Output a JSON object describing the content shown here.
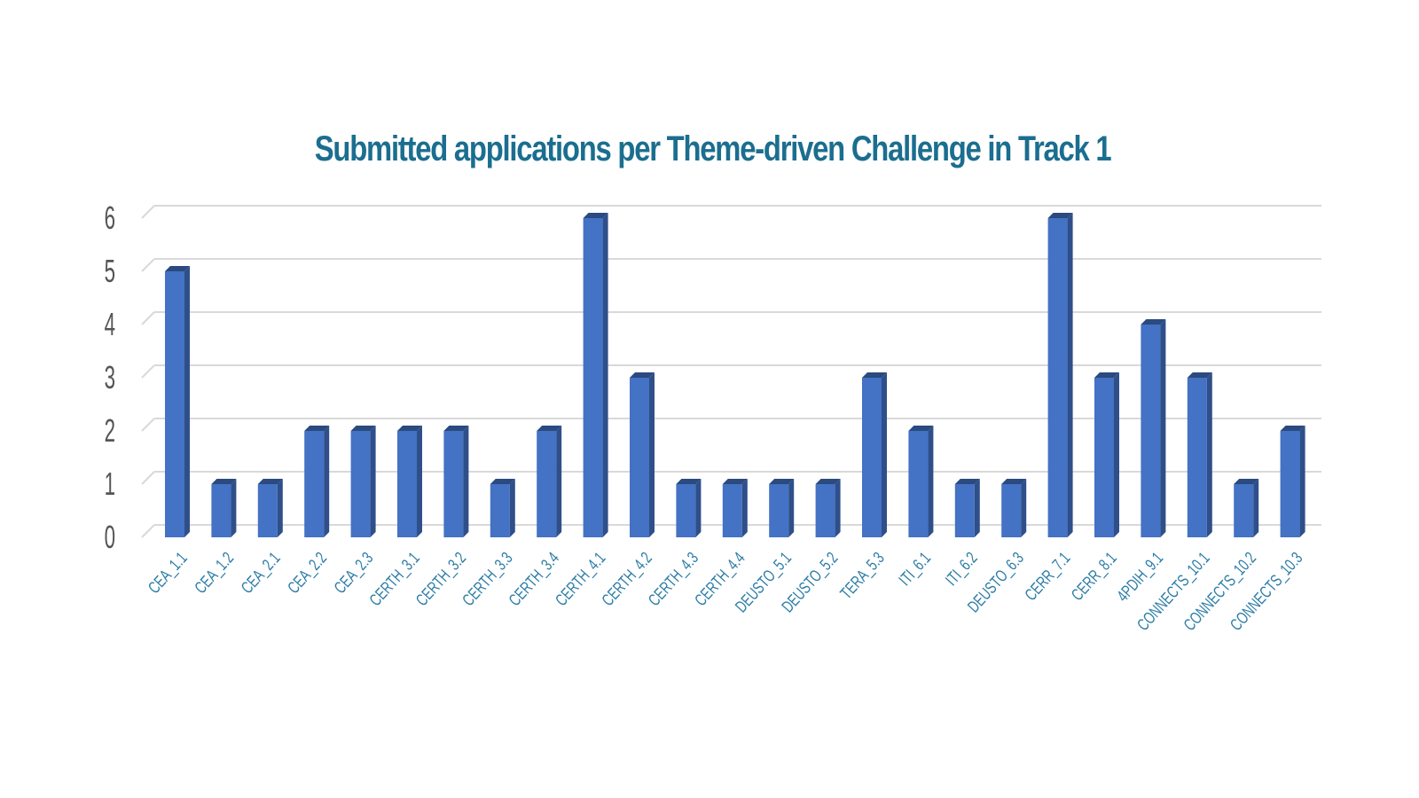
{
  "chart_data": {
    "type": "bar",
    "title": "Submitted applications per Theme-driven Challenge in Track 1",
    "xlabel": "",
    "ylabel": "",
    "ylim": [
      0,
      6
    ],
    "yticks": [
      "0",
      "1",
      "2",
      "3",
      "4",
      "5",
      "6"
    ],
    "grid": true,
    "legend": "none",
    "categories": [
      "CEA_1.1",
      "CEA_1.2",
      "CEA_2.1",
      "CEA_2.2",
      "CEA_2.3",
      "CERTH_3.1",
      "CERTH_3.2",
      "CERTH_3.3",
      "CERTH_3.4",
      "CERTH_4.1",
      "CERTH_4.2",
      "CERTH_4.3",
      "CERTH_4.4",
      "DEUSTO_5.1",
      "DEUSTO_5.2",
      "TERA_5.3",
      "ITI_6.1",
      "ITI_6.2",
      "DEUSTO_6.3",
      "CERR_7.1",
      "CERR_8.1",
      "4PDIH_9.1",
      "CONNECTS_10.1",
      "CONNECTS_10.2",
      "CONNECTS_10.3"
    ],
    "values": [
      5,
      1,
      1,
      2,
      2,
      2,
      2,
      1,
      2,
      6,
      3,
      1,
      1,
      1,
      1,
      3,
      2,
      1,
      1,
      6,
      3,
      4,
      3,
      1,
      2
    ],
    "colors": {
      "bar_front": "#4472c4",
      "bar_side": "#2f4f8a",
      "bar_top": "#2a4a80",
      "grid": "#d9d9d9",
      "title": "#1b6e8f",
      "tick_x": "#2e7ea6",
      "tick_y": "#555555"
    }
  }
}
